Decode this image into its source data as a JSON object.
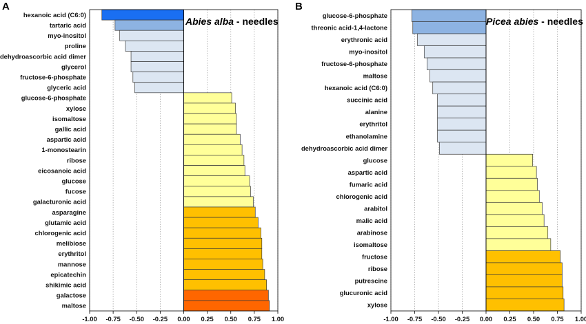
{
  "chart_data": [
    {
      "type": "bar",
      "orientation": "horizontal",
      "panel_label": "A",
      "title_italic": "Abies alba",
      "title_rest": " - needles",
      "xlim": [
        -1.0,
        1.0
      ],
      "xticks": [
        "-1.00",
        "-0.75",
        "-0.50",
        "-0.25",
        "0.00",
        "0.25",
        "0.50",
        "0.75",
        "1.00"
      ],
      "grid": "vertical-dotted",
      "categories": [
        "hexanoic acid (C6:0)",
        "tartaric acid",
        "myo-inositol",
        "proline",
        "dehydroascorbic acid dimer",
        "glycerol",
        "fructose-6-phosphate",
        "glyceric acid",
        "glucose-6-phosphate",
        "xylose",
        "isomaltose",
        "gallic acid",
        "aspartic acid",
        "1-monostearin",
        "ribose",
        "eicosanoic acid",
        "glucose",
        "fucose",
        "galacturonic acid",
        "asparagine",
        "glutamic acid",
        "chlorogenic acid",
        "melibiose",
        "erythritol",
        "mannose",
        "epicatechin",
        "shikimic acid",
        "galactose",
        "maltose"
      ],
      "values": [
        -0.87,
        -0.73,
        -0.68,
        -0.62,
        -0.56,
        -0.56,
        -0.54,
        -0.52,
        0.51,
        0.55,
        0.56,
        0.56,
        0.6,
        0.62,
        0.64,
        0.65,
        0.7,
        0.71,
        0.74,
        0.76,
        0.79,
        0.82,
        0.83,
        0.83,
        0.84,
        0.86,
        0.88,
        0.9,
        0.91
      ],
      "colors": [
        "#1a6ff2",
        "#8db3e2",
        "#dce6f2",
        "#dce6f2",
        "#dce6f2",
        "#dce6f2",
        "#dce6f2",
        "#dce6f2",
        "#ffff99",
        "#ffff99",
        "#ffff99",
        "#ffff99",
        "#ffff99",
        "#ffff99",
        "#ffff99",
        "#ffff99",
        "#ffff99",
        "#ffff99",
        "#ffff99",
        "#ffc000",
        "#ffc000",
        "#ffc000",
        "#ffc000",
        "#ffc000",
        "#ffc000",
        "#ffc000",
        "#ffc000",
        "#ff6600",
        "#ff6600"
      ]
    },
    {
      "type": "bar",
      "orientation": "horizontal",
      "panel_label": "B",
      "title_italic": "Picea abies",
      "title_rest": " - needles",
      "xlim": [
        -1.0,
        1.0
      ],
      "xticks": [
        "-1.00",
        "-0.75",
        "-0.50",
        "-0.25",
        "0.00",
        "0.25",
        "0.50",
        "0.75",
        "1.00"
      ],
      "grid": "vertical-dotted",
      "categories": [
        "glucose-6-phosphate",
        "threonic acid-1,4-lactone",
        "erythronic acid",
        "myo-inositol",
        "fructose-6-phosphate",
        "maltose",
        "hexanoic acid (C6:0)",
        "succinic acid",
        "alanine",
        "erythritol",
        "ethanolamine",
        "dehydroascorbic acid dimer",
        "glucose",
        "aspartic acid",
        "fumaric acid",
        "chlorogenic acid",
        "arabitol",
        "malic acid",
        "arabinose",
        "isomaltose",
        "fructose",
        "ribose",
        "putrescine",
        "glucuronic acid",
        "xylose"
      ],
      "values": [
        -0.78,
        -0.77,
        -0.72,
        -0.65,
        -0.62,
        -0.59,
        -0.56,
        -0.51,
        -0.51,
        -0.51,
        -0.51,
        -0.49,
        0.49,
        0.53,
        0.54,
        0.56,
        0.59,
        0.61,
        0.65,
        0.68,
        0.78,
        0.8,
        0.8,
        0.81,
        0.82
      ],
      "colors": [
        "#8db3e2",
        "#8db3e2",
        "#dce6f2",
        "#dce6f2",
        "#dce6f2",
        "#dce6f2",
        "#dce6f2",
        "#dce6f2",
        "#dce6f2",
        "#dce6f2",
        "#dce6f2",
        "#dce6f2",
        "#ffff99",
        "#ffff99",
        "#ffff99",
        "#ffff99",
        "#ffff99",
        "#ffff99",
        "#ffff99",
        "#ffff99",
        "#ffc000",
        "#ffc000",
        "#ffc000",
        "#ffc000",
        "#ffc000"
      ]
    }
  ]
}
